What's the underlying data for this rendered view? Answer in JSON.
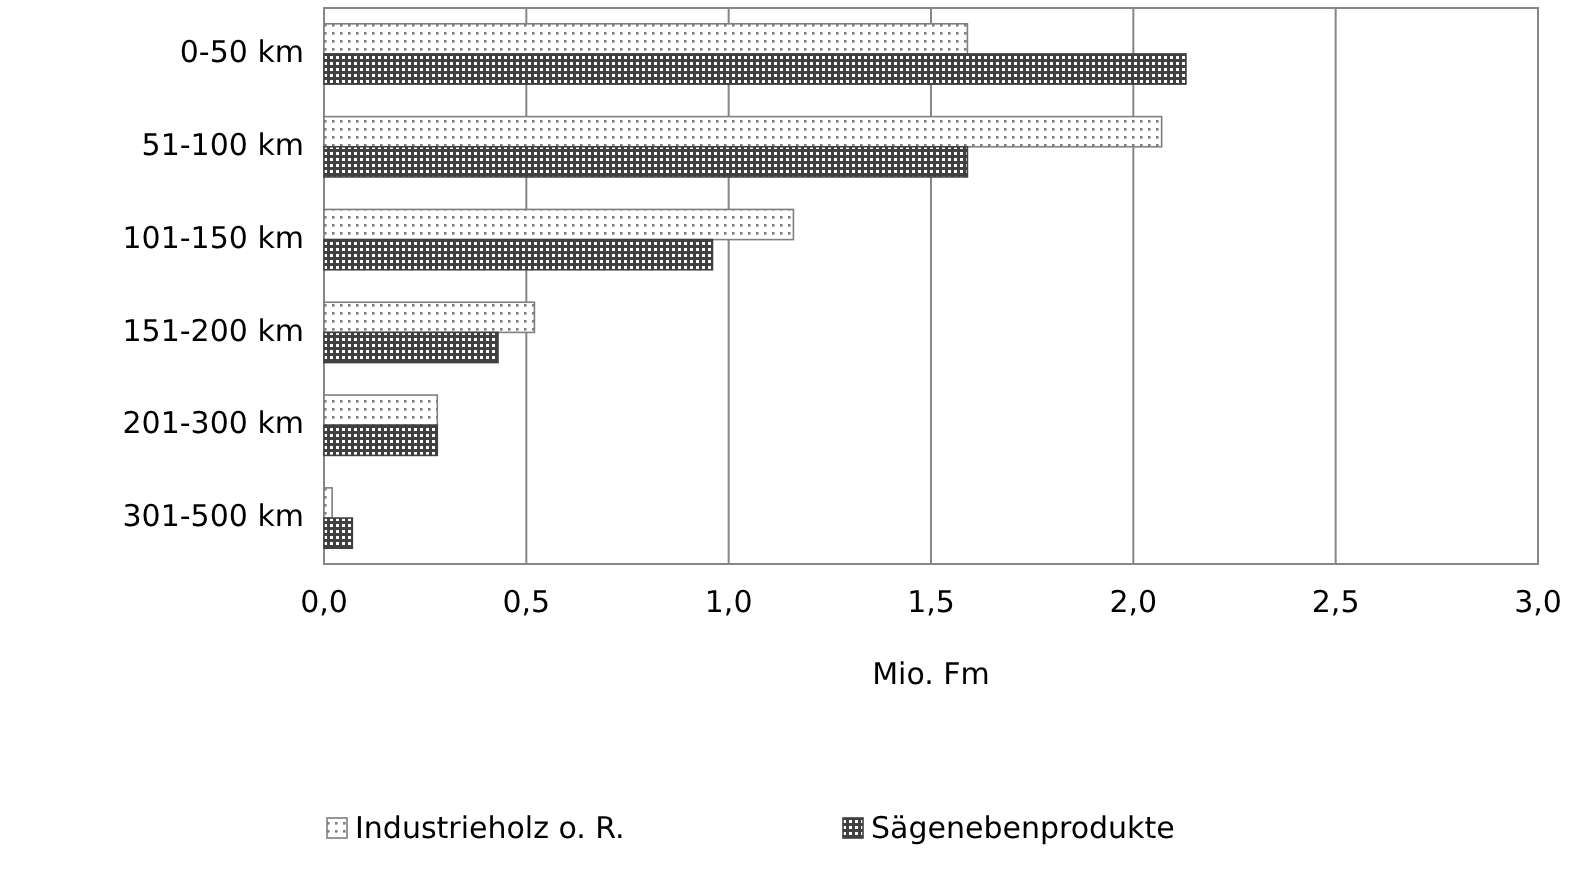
{
  "chart_data": {
    "type": "bar",
    "orientation": "horizontal",
    "xlabel": "Mio. Fm",
    "categories": [
      "0-50 km",
      "51-100 km",
      "101-150 km",
      "151-200 km",
      "201-300 km",
      "301-500 km"
    ],
    "series": [
      {
        "name": "Industrieholz o. R.",
        "color": "#7f7f7f",
        "values": [
          1.59,
          2.07,
          1.16,
          0.52,
          0.28,
          0.02
        ]
      },
      {
        "name": "Sägenebenprodukte",
        "color": "#404040",
        "values": [
          2.13,
          1.59,
          0.96,
          0.43,
          0.28,
          0.07
        ]
      }
    ],
    "xlim": [
      0,
      3
    ],
    "xticks": [
      {
        "value": 0,
        "label": "0,0"
      },
      {
        "value": 0.5,
        "label": "0,5"
      },
      {
        "value": 1,
        "label": "1,0"
      },
      {
        "value": 1.5,
        "label": "1,5"
      },
      {
        "value": 2,
        "label": "2,0"
      },
      {
        "value": 2.5,
        "label": "2,5"
      },
      {
        "value": 3,
        "label": "3,0"
      }
    ],
    "grid": "x",
    "legend": "bottom"
  }
}
